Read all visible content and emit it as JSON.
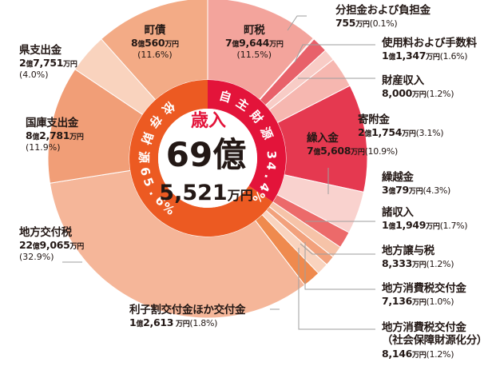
{
  "chart_data": {
    "type": "pie",
    "center": {
      "title": "歳入",
      "total_main": "69億",
      "total_sub": "5,521",
      "total_unit": "万円"
    },
    "rings": [
      {
        "label": "自主財源",
        "percent": "34.4%"
      },
      {
        "label": "依存財源",
        "percent": "65.6%"
      }
    ],
    "slices": [
      {
        "name": "町税",
        "value": "7億9,644万円",
        "percent": "(11.5%)",
        "pct": 11.5,
        "color": "#F3A49C"
      },
      {
        "name": "分担金および負担金",
        "value": "755万円",
        "percent": "(0.1%)",
        "pct": 0.1,
        "color": "#EF8E86"
      },
      {
        "name": "使用料および手数料",
        "value": "1億1,347万円",
        "percent": "(1.6%)",
        "pct": 1.6,
        "color": "#E8616A"
      },
      {
        "name": "財産収入",
        "value": "8,000万円",
        "percent": "(1.2%)",
        "pct": 1.2,
        "color": "#F8CCC6"
      },
      {
        "name": "寄附金",
        "value": "2億1,754万円",
        "percent": "(3.1%)",
        "pct": 3.1,
        "color": "#F6B7B0"
      },
      {
        "name": "繰入金",
        "value": "7億5,608万円",
        "percent": "(10.9%)",
        "pct": 10.9,
        "color": "#E53950"
      },
      {
        "name": "繰越金",
        "value": "3億79万円",
        "percent": "(4.3%)",
        "pct": 4.3,
        "color": "#F9D2CE"
      },
      {
        "name": "諸収入",
        "value": "1億1,949万円",
        "percent": "(1.7%)",
        "pct": 1.7,
        "color": "#EC6A6A"
      },
      {
        "name": "地方譲与税",
        "value": "8,333万円",
        "percent": "(1.2%)",
        "pct": 1.2,
        "color": "#F6C3A8"
      },
      {
        "name": "地方消費税交付金",
        "value": "7,136万円",
        "percent": "(1.0%)",
        "pct": 1.0,
        "color": "#F2A17C"
      },
      {
        "name": "地方消費税交付金（社会保障財源化分）",
        "value": "8,146万円",
        "percent": "(1.2%)",
        "pct": 1.2,
        "color": "#F9D3BE"
      },
      {
        "name": "利子割交付金ほか交付金",
        "value": "1億2,613 万円",
        "percent": "(1.8%)",
        "pct": 1.8,
        "color": "#EF8A4E"
      },
      {
        "name": "地方交付税",
        "value": "22億9,065万円",
        "percent": "(32.9%)",
        "pct": 32.9,
        "color": "#F5B699"
      },
      {
        "name": "国庫支出金",
        "value": "8億2,781万円",
        "percent": "(11.9%)",
        "pct": 11.9,
        "color": "#F19E77"
      },
      {
        "name": "県支出金",
        "value": "2億7,751万円",
        "percent": "(4.0%)",
        "pct": 4.0,
        "color": "#F9D3BE"
      },
      {
        "name": "町債",
        "value": "8億560万円",
        "percent": "(11.6%)",
        "pct": 11.6,
        "color": "#F3AB86"
      }
    ],
    "ring_colors": {
      "own": "#E3143A",
      "dependent": "#EC5A22"
    },
    "line_color": "#9E9E9E"
  },
  "labels": {
    "tax": {
      "name": "町税",
      "value_a": "7",
      "unit_a": "億",
      "value_b": "9,644",
      "unit_b": "万円",
      "pct": "(11.5%)"
    },
    "bond": {
      "name": "町債",
      "value_a": "8",
      "unit_a": "億",
      "value_b": "560",
      "unit_b": "万円",
      "pct": "(11.6%)"
    },
    "pref": {
      "name": "県支出金",
      "value_a": "2",
      "unit_a": "億",
      "value_b": "7,751",
      "unit_b": "万円",
      "pct": "(4.0%)"
    },
    "nat": {
      "name": "国庫支出金",
      "value_a": "8",
      "unit_a": "億",
      "value_b": "2,781",
      "unit_b": "万円",
      "pct": "(11.9%)"
    },
    "grant": {
      "name": "地方交付税",
      "value_a": "22",
      "unit_a": "億",
      "value_b": "9,065",
      "unit_b": "万円",
      "pct": "(32.9%)"
    },
    "interest": {
      "name": "利子割交付金ほか交付金",
      "value_a": "1",
      "unit_a": "億",
      "value_b": "2,613",
      "unit_b": " 万円",
      "pct": "(1.8%)"
    },
    "share": {
      "name": "分担金および負担金",
      "value_b": "755",
      "unit_b": "万円",
      "pct": "(0.1%)"
    },
    "fee": {
      "name": "使用料および手数料",
      "value_a": "1",
      "unit_a": "億",
      "value_b": "1,347",
      "unit_b": "万円",
      "pct": "(1.6%)"
    },
    "prop": {
      "name": "財産収入",
      "value_b": "8,000",
      "unit_b": "万円",
      "pct": "(1.2%)"
    },
    "donation": {
      "name": "寄附金",
      "value_a": "2",
      "unit_a": "億",
      "value_b": "1,754",
      "unit_b": "万円",
      "pct": "(3.1%)"
    },
    "transfer": {
      "name": "繰入金",
      "value_a": "7",
      "unit_a": "億",
      "value_b": "5,608",
      "unit_b": "万円",
      "pct": "(10.9%)"
    },
    "carry": {
      "name": "繰越金",
      "value_a": "3",
      "unit_a": "億",
      "value_b": "79",
      "unit_b": "万円",
      "pct": "(4.3%)"
    },
    "misc": {
      "name": "諸収入",
      "value_a": "1",
      "unit_a": "億",
      "value_b": "1,949",
      "unit_b": "万円",
      "pct": "(1.7%)"
    },
    "transfer_tax": {
      "name": "地方譲与税",
      "value_b": "8,333",
      "unit_b": "万円",
      "pct": "(1.2%)"
    },
    "consump": {
      "name": "地方消費税交付金",
      "value_b": "7,136",
      "unit_b": "万円",
      "pct": "(1.0%)"
    },
    "consump2": {
      "name": "地方消費税交付金",
      "name2": "（社会保障財源化分）",
      "value_b": "8,146",
      "unit_b": "万円",
      "pct": "(1.2%)"
    }
  }
}
